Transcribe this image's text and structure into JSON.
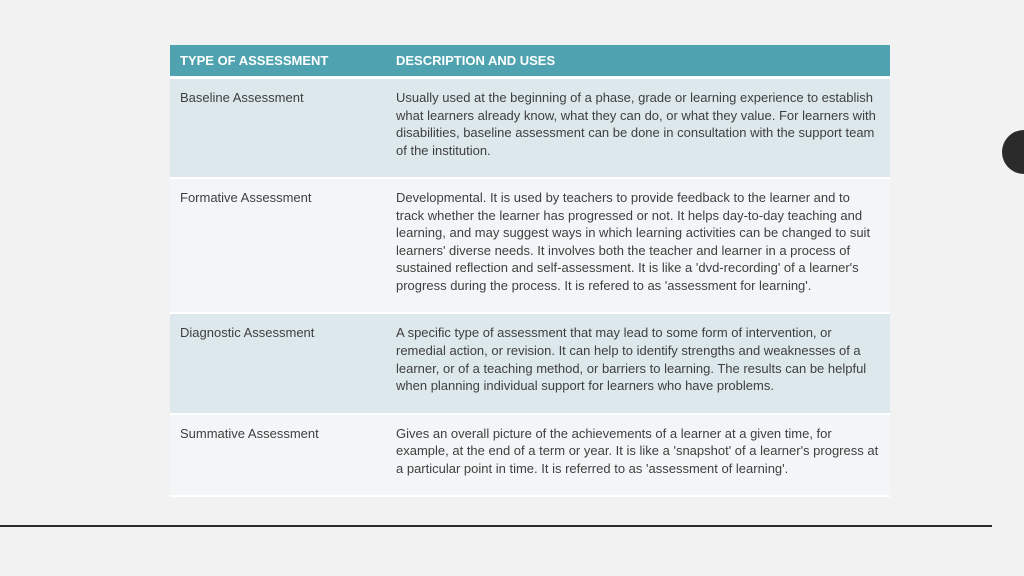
{
  "table": {
    "header_bg": "#4fa3b0",
    "header_fg": "#ffffff",
    "row_alt_bg": "#dce8ec",
    "row_plain_bg": "#f2f6f7",
    "text_color": "#3f3f3f",
    "font_size_pt": 10,
    "col_widths_pct": [
      30,
      70
    ],
    "columns": [
      "TYPE OF ASSESSMENT",
      "DESCRIPTION AND USES"
    ],
    "rows": [
      {
        "type": "Baseline Assessment",
        "desc": "Usually used at the beginning of a phase, grade or learning experience to establish what learners already know, what they can do, or what they value.  For learners with disabilities, baseline assessment can be done in consultation with the support team of the institution."
      },
      {
        "type": "Formative Assessment",
        "desc": "Developmental.  It is used by teachers to provide feedback to the learner and to track whether the learner has progressed or not.  It helps day-to-day teaching and learning, and may suggest ways in which learning activities can be changed to suit learners' diverse needs. It involves both the teacher and learner in a process of sustained reflection and self-assessment.  It is like a 'dvd-recording' of a learner's progress during the process.  It is refered to as 'assessment for learning'."
      },
      {
        "type": "Diagnostic Assessment",
        "desc": "A specific type of assessment that may lead to some form of intervention, or remedial action, or revision.  It can help to identify strengths and weaknesses of a learner, or of a teaching method, or barriers to learning.  The results can be helpful when planning individual support for learners who have problems."
      },
      {
        "type": "Summative Assessment",
        "desc": "Gives an overall picture of the achievements of a learner at a given time, for example, at the end of a term or year.  It is like a 'snapshot' of a learner's progress at a particular point in time.  It is referred to as 'assessment of learning'."
      }
    ]
  },
  "decoration": {
    "underline_color": "#2b2b2b",
    "blob_color": "#2b2b2b",
    "page_bg": "#f2f2f2"
  }
}
